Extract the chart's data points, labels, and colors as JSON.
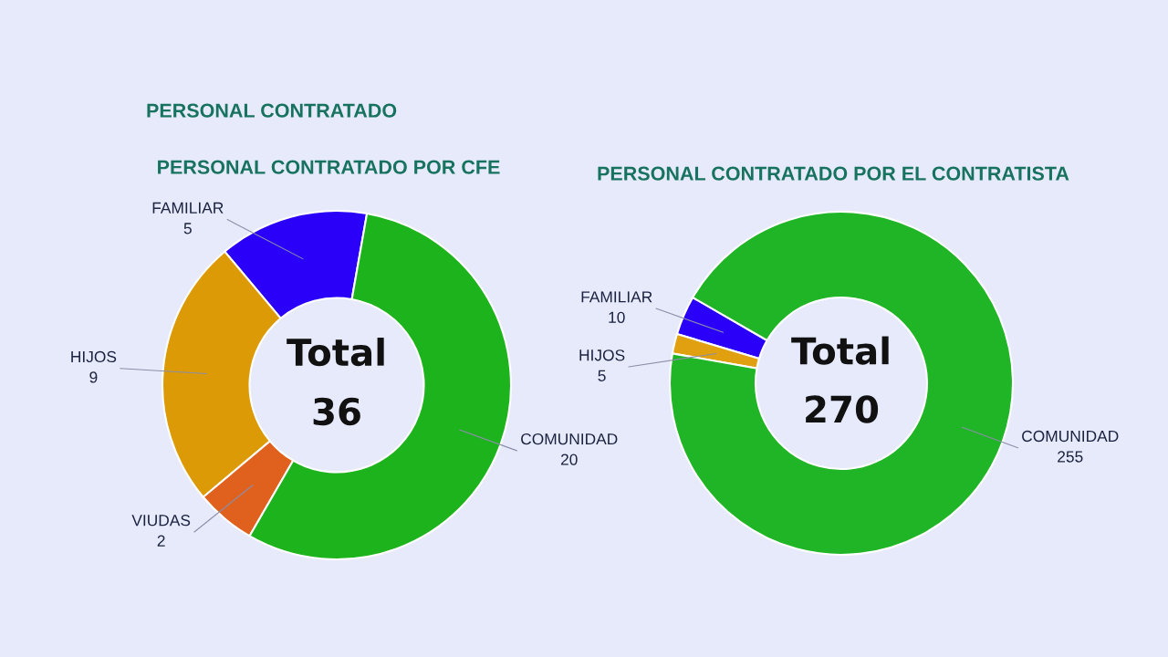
{
  "chart_data": [
    {
      "type": "donut",
      "title": "PERSONAL CONTRATADO",
      "subtitle": "PERSONAL CONTRATADO POR CFE",
      "categories": [
        "FAMILIAR",
        "HIJOS",
        "VIUDAS",
        "COMUNIDAD"
      ],
      "values": [
        5,
        9,
        2,
        20
      ],
      "colors": [
        "#2a00f8",
        "#dc9a06",
        "#e0601e",
        "#1db31d"
      ],
      "data_labels": true,
      "annotations": [
        "Total",
        "36"
      ]
    },
    {
      "type": "donut",
      "title": "PERSONAL CONTRATADO POR EL CONTRATISTA",
      "categories": [
        "FAMILIAR",
        "HIJOS",
        "COMUNIDAD"
      ],
      "values": [
        10,
        5,
        255
      ],
      "colors": [
        "#2a00f8",
        "#e0a010",
        "#1fb526"
      ],
      "data_labels": true,
      "annotations": [
        "Total",
        "270"
      ]
    }
  ]
}
